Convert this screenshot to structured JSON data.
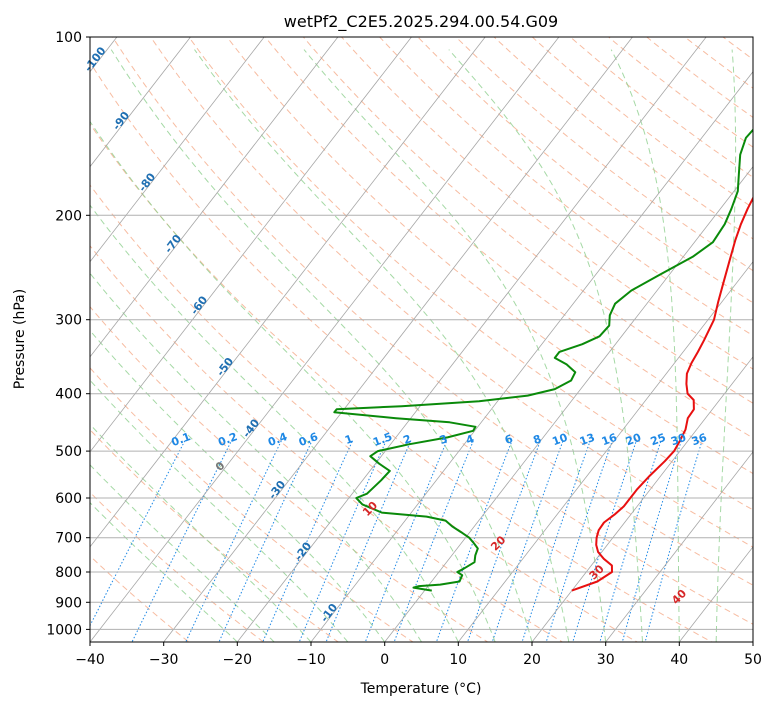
{
  "chart_data": {
    "type": "line",
    "chart_kind": "Skew-T log-P diagram",
    "title": "wetPf2_C2E5.2025.294.00.54.G09",
    "xlabel": "Temperature (°C)",
    "ylabel": "Pressure (hPa)",
    "xlim": [
      -40,
      50
    ],
    "ylim": [
      1050,
      100
    ],
    "x_ticks": [
      -40,
      -30,
      -20,
      -10,
      0,
      10,
      20,
      30,
      40,
      50
    ],
    "x_tick_labels": [
      "−40",
      "−30",
      "−20",
      "−10",
      "0",
      "10",
      "20",
      "30",
      "40",
      "50"
    ],
    "y_ticks": [
      100,
      200,
      300,
      400,
      500,
      600,
      700,
      800,
      900,
      1000
    ],
    "y_tick_labels": [
      "100",
      "200",
      "300",
      "400",
      "500",
      "600",
      "700",
      "800",
      "900",
      "1000"
    ],
    "grid": true,
    "colors": {
      "temperature": "#e81010",
      "dewpoint": "#0a8a0a",
      "isotherm": "#a6a6a6",
      "dry_adiabat": "#f4a582",
      "moist_adiabat": "#8fcf8f",
      "mixing_ratio": "#1e88e5",
      "moist_label": "#d62728",
      "dry_label": "#1f6fb2",
      "zero_label": "#777777"
    },
    "series": [
      {
        "name": "Temperature",
        "points": [
          [
            20,
            860
          ],
          [
            22.5,
            830
          ],
          [
            23.5,
            800
          ],
          [
            22.8,
            780
          ],
          [
            21,
            760
          ],
          [
            19.5,
            740
          ],
          [
            18.5,
            720
          ],
          [
            17.8,
            700
          ],
          [
            17.3,
            680
          ],
          [
            17.2,
            660
          ],
          [
            17.8,
            640
          ],
          [
            18.2,
            620
          ],
          [
            18.2,
            600
          ],
          [
            18.2,
            580
          ],
          [
            18.5,
            550
          ],
          [
            19,
            520
          ],
          [
            19.2,
            500
          ],
          [
            18.9,
            480
          ],
          [
            18.5,
            460
          ],
          [
            17.6,
            440
          ],
          [
            17.5,
            425
          ],
          [
            16.5,
            410
          ],
          [
            15,
            400
          ],
          [
            13.8,
            385
          ],
          [
            12.8,
            370
          ],
          [
            12.3,
            355
          ],
          [
            12,
            340
          ],
          [
            11.6,
            325
          ],
          [
            10.8,
            300
          ],
          [
            9.5,
            280
          ],
          [
            8.2,
            260
          ],
          [
            6.8,
            240
          ],
          [
            5.3,
            220
          ],
          [
            4.4,
            207
          ],
          [
            3.7,
            195
          ],
          [
            3.1,
            183
          ],
          [
            2.8,
            172
          ],
          [
            2.8,
            162
          ],
          [
            3.6,
            152
          ],
          [
            4.8,
            140
          ],
          [
            5.6,
            130
          ],
          [
            6.5,
            120
          ],
          [
            8.8,
            108
          ],
          [
            10.3,
            100
          ]
        ]
      },
      {
        "name": "Dewpoint",
        "points": [
          [
            1,
            860
          ],
          [
            -1.8,
            850
          ],
          [
            -1.2,
            845
          ],
          [
            1.5,
            840
          ],
          [
            3.8,
            830
          ],
          [
            3.5,
            810
          ],
          [
            2.5,
            800
          ],
          [
            3,
            790
          ],
          [
            3.8,
            770
          ],
          [
            3.2,
            750
          ],
          [
            2.8,
            730
          ],
          [
            1.7,
            715
          ],
          [
            0.5,
            700
          ],
          [
            -1.2,
            685
          ],
          [
            -3,
            670
          ],
          [
            -4.5,
            655
          ],
          [
            -7.5,
            645
          ],
          [
            -14,
            635
          ],
          [
            -17.5,
            615
          ],
          [
            -19,
            600
          ],
          [
            -18,
            590
          ],
          [
            -17.5,
            560
          ],
          [
            -17.3,
            540
          ],
          [
            -19.5,
            525
          ],
          [
            -21.5,
            510
          ],
          [
            -21,
            500
          ],
          [
            -17.5,
            487
          ],
          [
            -13,
            474
          ],
          [
            -10.2,
            462
          ],
          [
            -10.3,
            455
          ],
          [
            -14.3,
            447
          ],
          [
            -22,
            440
          ],
          [
            -31,
            430
          ],
          [
            -31,
            425
          ],
          [
            -22.5,
            420
          ],
          [
            -12.5,
            412
          ],
          [
            -6.5,
            403
          ],
          [
            -3.5,
            393
          ],
          [
            -2.2,
            380
          ],
          [
            -2.5,
            368
          ],
          [
            -4.5,
            357
          ],
          [
            -6.8,
            348
          ],
          [
            -6.8,
            340
          ],
          [
            -4.5,
            330
          ],
          [
            -3,
            320
          ],
          [
            -2.8,
            307
          ],
          [
            -3.8,
            295
          ],
          [
            -4.3,
            282
          ],
          [
            -3.5,
            268
          ],
          [
            -1.3,
            252
          ],
          [
            1.3,
            235
          ],
          [
            2.5,
            222
          ],
          [
            2.2,
            207
          ],
          [
            1.5,
            195
          ],
          [
            0.5,
            182
          ],
          [
            -1.2,
            170
          ],
          [
            -3,
            158
          ],
          [
            -4,
            148
          ],
          [
            -3.8,
            140
          ],
          [
            -2.5,
            130
          ],
          [
            -0.5,
            120
          ],
          [
            2.3,
            107
          ],
          [
            3.8,
            100
          ]
        ]
      }
    ],
    "dry_adiabat_labels": [
      "-100",
      "-90",
      "-80",
      "-70",
      "-60",
      "-50",
      "-40",
      "-30",
      "-20",
      "-10"
    ],
    "moist_adiabat_labels": [
      "0",
      "10",
      "20",
      "30",
      "40"
    ],
    "mixing_ratio_labels": [
      "0.1",
      "0.2",
      "0.4",
      "0.6",
      "1",
      "1.5",
      "2",
      "3",
      "4",
      "6",
      "8",
      "10",
      "13",
      "16",
      "20",
      "25",
      "30",
      "36"
    ]
  }
}
